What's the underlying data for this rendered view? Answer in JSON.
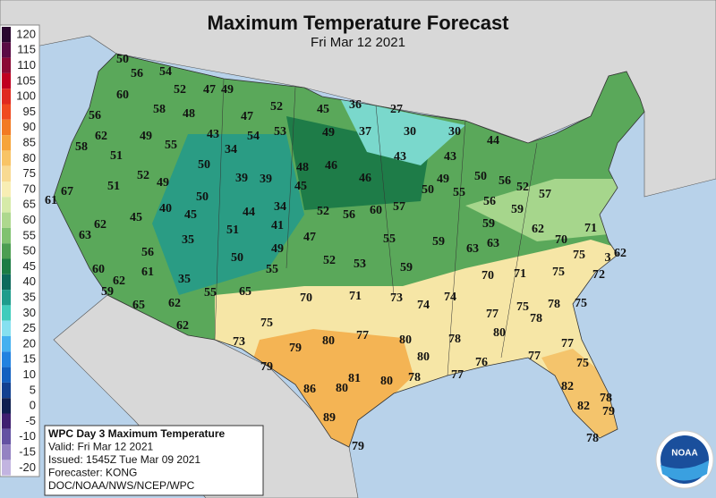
{
  "header": {
    "title": "Maximum Temperature Forecast",
    "subtitle": "Fri Mar 12 2021"
  },
  "legend": {
    "items": [
      {
        "value": 120,
        "color": "#2a0830"
      },
      {
        "value": 115,
        "color": "#5a0c45"
      },
      {
        "value": 110,
        "color": "#8a0a35"
      },
      {
        "value": 105,
        "color": "#c00020"
      },
      {
        "value": 100,
        "color": "#e02a20"
      },
      {
        "value": 95,
        "color": "#f04a20"
      },
      {
        "value": 90,
        "color": "#f27a22"
      },
      {
        "value": 85,
        "color": "#f6a43a"
      },
      {
        "value": 80,
        "color": "#f8c466"
      },
      {
        "value": 75,
        "color": "#f8da92"
      },
      {
        "value": 70,
        "color": "#f8eeb4"
      },
      {
        "value": 65,
        "color": "#d6eaa8"
      },
      {
        "value": 60,
        "color": "#aed88e"
      },
      {
        "value": 55,
        "color": "#80c270"
      },
      {
        "value": 50,
        "color": "#4c9e52"
      },
      {
        "value": 45,
        "color": "#1c7c44"
      },
      {
        "value": 40,
        "color": "#0e6a5c"
      },
      {
        "value": 35,
        "color": "#1e9c8c"
      },
      {
        "value": 30,
        "color": "#40ccbc"
      },
      {
        "value": 25,
        "color": "#86e0f0"
      },
      {
        "value": 20,
        "color": "#44b0f0"
      },
      {
        "value": 15,
        "color": "#2282e0"
      },
      {
        "value": 10,
        "color": "#1260c0"
      },
      {
        "value": 5,
        "color": "#124090"
      },
      {
        "value": 0,
        "color": "#102050"
      },
      {
        "value": -5,
        "color": "#402070"
      },
      {
        "value": -10,
        "color": "#6452a2"
      },
      {
        "value": -15,
        "color": "#9482c2"
      },
      {
        "value": -20,
        "color": "#c2b4e0"
      }
    ]
  },
  "map": {
    "temperatures": [
      50,
      56,
      54,
      52,
      47,
      49,
      60,
      58,
      48,
      52,
      45,
      36,
      27,
      56,
      47,
      62,
      49,
      55,
      43,
      54,
      53,
      49,
      37,
      30,
      30,
      44,
      58,
      51,
      34,
      50,
      48,
      46,
      43,
      43,
      39,
      39,
      52,
      49,
      50,
      46,
      50,
      49,
      55,
      56,
      52,
      57,
      45,
      61,
      67,
      51,
      50,
      34,
      44,
      52,
      56,
      60,
      57,
      56,
      59,
      45,
      40,
      45,
      62,
      41,
      51,
      59,
      62,
      70,
      71,
      63,
      35,
      47,
      55,
      59,
      63,
      63,
      56,
      49,
      50,
      52,
      53,
      59,
      75,
      3,
      62,
      60,
      61,
      55,
      70,
      71,
      75,
      72,
      62,
      35,
      59,
      55,
      65,
      70,
      71,
      73,
      74,
      74,
      65,
      62,
      78,
      75,
      77,
      75,
      78,
      62,
      75,
      80,
      77,
      80,
      80,
      78,
      73,
      79,
      77,
      77,
      80,
      76,
      75,
      79,
      81,
      80,
      78,
      77,
      86,
      80,
      82,
      78,
      82,
      79,
      89,
      78,
      79
    ]
  },
  "info_box": {
    "lines": [
      "WPC Day 3 Maximum Temperature",
      "Valid: Fri Mar 12 2021",
      "Issued: 1545Z Tue Mar 09 2021",
      "Forecaster: KONG",
      "DOC/NOAA/NWS/NCEP/WPC"
    ]
  },
  "logo": {
    "text": "NOAA"
  }
}
